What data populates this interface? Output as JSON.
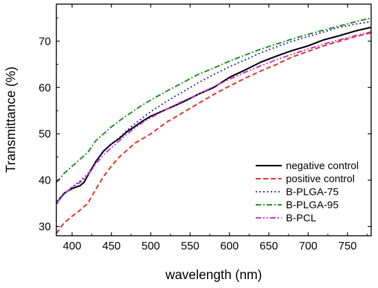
{
  "chart_data": {
    "type": "line",
    "title": "",
    "xlabel": "wavelength (nm)",
    "ylabel": "Transmittance (%)",
    "xlim": [
      380,
      780
    ],
    "ylim": [
      28,
      78
    ],
    "xticks": [
      400,
      450,
      500,
      550,
      600,
      650,
      700,
      750
    ],
    "yticks": [
      30,
      40,
      50,
      60,
      70
    ],
    "grid": false,
    "legend_position": "bottom-right",
    "series": [
      {
        "name": "negative control",
        "color": "#000000",
        "dash": "solid",
        "x": [
          380,
          390,
          400,
          410,
          415,
          420,
          430,
          440,
          450,
          460,
          470,
          480,
          490,
          500,
          520,
          540,
          560,
          580,
          600,
          620,
          640,
          660,
          680,
          700,
          720,
          740,
          760,
          780
        ],
        "y": [
          35.0,
          37.2,
          38.2,
          38.8,
          39.5,
          41.0,
          44.0,
          46.3,
          47.8,
          49.0,
          50.5,
          51.6,
          52.8,
          53.8,
          55.3,
          56.8,
          58.5,
          60.0,
          62.2,
          63.8,
          65.5,
          66.8,
          68.0,
          69.0,
          70.3,
          71.2,
          72.2,
          73.0
        ]
      },
      {
        "name": "positive control",
        "color": "#e8271e",
        "dash": "dashed",
        "x": [
          380,
          390,
          400,
          410,
          420,
          430,
          440,
          450,
          460,
          470,
          480,
          490,
          500,
          520,
          540,
          560,
          580,
          600,
          620,
          640,
          660,
          680,
          700,
          720,
          740,
          760,
          780
        ],
        "y": [
          28.5,
          30.8,
          32.2,
          33.5,
          35.0,
          38.0,
          40.8,
          43.0,
          45.0,
          46.5,
          48.0,
          49.0,
          50.0,
          52.5,
          54.5,
          56.5,
          58.5,
          60.3,
          62.0,
          63.6,
          65.0,
          66.6,
          67.8,
          69.0,
          70.0,
          71.0,
          71.8
        ]
      },
      {
        "name": "B-PLGA-75",
        "color": "#1f1fd6",
        "dash": "dotted",
        "x": [
          380,
          390,
          400,
          410,
          420,
          430,
          440,
          450,
          460,
          470,
          480,
          490,
          500,
          520,
          540,
          560,
          580,
          600,
          620,
          640,
          660,
          680,
          700,
          720,
          740,
          760,
          780
        ],
        "y": [
          35.5,
          37.0,
          38.5,
          39.8,
          41.3,
          44.0,
          46.2,
          47.8,
          49.2,
          50.8,
          52.2,
          53.5,
          54.8,
          57.0,
          59.0,
          61.0,
          62.8,
          64.5,
          66.0,
          67.5,
          68.8,
          70.0,
          71.0,
          72.0,
          73.0,
          73.7,
          74.2
        ]
      },
      {
        "name": "B-PLGA-95",
        "color": "#1a8a1a",
        "dash": "dashdot",
        "x": [
          380,
          390,
          400,
          410,
          420,
          430,
          440,
          450,
          460,
          470,
          480,
          490,
          500,
          520,
          540,
          560,
          580,
          600,
          620,
          640,
          660,
          680,
          700,
          720,
          740,
          760,
          780
        ],
        "y": [
          39.5,
          41.5,
          43.0,
          44.5,
          46.0,
          48.5,
          50.0,
          51.5,
          52.8,
          54.0,
          55.2,
          56.3,
          57.3,
          59.2,
          61.0,
          62.8,
          64.2,
          65.7,
          67.0,
          68.3,
          69.4,
          70.5,
          71.5,
          72.4,
          73.3,
          74.2,
          75.0
        ]
      },
      {
        "name": "B-PCL",
        "color": "#d12ad1",
        "dash": "dashdotdot",
        "x": [
          380,
          390,
          400,
          410,
          420,
          430,
          440,
          450,
          460,
          470,
          480,
          490,
          500,
          520,
          540,
          560,
          580,
          600,
          620,
          640,
          660,
          680,
          700,
          720,
          740,
          760,
          780
        ],
        "y": [
          35.0,
          37.0,
          38.5,
          39.5,
          41.0,
          43.5,
          45.5,
          47.0,
          48.5,
          50.0,
          51.3,
          52.5,
          53.5,
          55.3,
          57.0,
          58.5,
          60.2,
          61.8,
          63.3,
          64.7,
          66.0,
          67.2,
          68.3,
          69.4,
          70.3,
          71.2,
          72.0
        ]
      }
    ]
  }
}
